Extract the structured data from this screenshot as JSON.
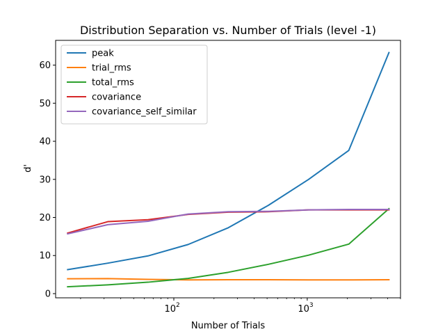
{
  "chart_data": {
    "type": "line",
    "title": "Distribution Separation vs. Number of Trials (level -1)",
    "xlabel": "Number of Trials",
    "ylabel": "d'",
    "xscale": "log",
    "xlim": [
      13,
      5000
    ],
    "ylim": [
      -1.1,
      66.5
    ],
    "xticks": [
      {
        "value": 100,
        "base": "10",
        "exp": "2"
      },
      {
        "value": 1000,
        "base": "10",
        "exp": "3"
      }
    ],
    "yticks": [
      0,
      10,
      20,
      30,
      40,
      50,
      60
    ],
    "grid": false,
    "legend": "top-left",
    "x": [
      16,
      32,
      64,
      128,
      256,
      512,
      1024,
      2048,
      4096
    ],
    "series": [
      {
        "name": "peak",
        "color": "#1f77b4",
        "values": [
          6.3,
          8.0,
          9.9,
          12.9,
          17.3,
          23.2,
          30.0,
          37.6,
          63.3
        ]
      },
      {
        "name": "trial_rms",
        "color": "#ff7f0e",
        "values": [
          3.9,
          3.95,
          3.75,
          3.6,
          3.65,
          3.65,
          3.6,
          3.6,
          3.65
        ]
      },
      {
        "name": "total_rms",
        "color": "#2ca02c",
        "values": [
          1.8,
          2.3,
          3.0,
          4.0,
          5.6,
          7.7,
          10.1,
          13.0,
          22.3
        ]
      },
      {
        "name": "covariance",
        "color": "#d62728",
        "values": [
          15.9,
          18.9,
          19.4,
          20.8,
          21.4,
          21.5,
          22.0,
          22.0,
          22.0
        ]
      },
      {
        "name": "covariance_self_similar",
        "color": "#9467bd",
        "values": [
          15.7,
          18.1,
          19.0,
          20.9,
          21.5,
          21.6,
          22.0,
          22.1,
          22.1
        ]
      }
    ]
  }
}
